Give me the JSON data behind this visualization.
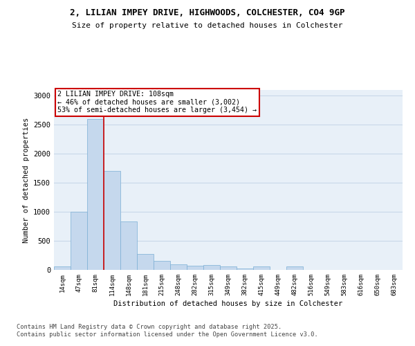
{
  "title_line1": "2, LILIAN IMPEY DRIVE, HIGHWOODS, COLCHESTER, CO4 9GP",
  "title_line2": "Size of property relative to detached houses in Colchester",
  "xlabel": "Distribution of detached houses by size in Colchester",
  "ylabel": "Number of detached properties",
  "bins": [
    "14sqm",
    "47sqm",
    "81sqm",
    "114sqm",
    "148sqm",
    "181sqm",
    "215sqm",
    "248sqm",
    "282sqm",
    "315sqm",
    "349sqm",
    "382sqm",
    "415sqm",
    "449sqm",
    "482sqm",
    "516sqm",
    "549sqm",
    "583sqm",
    "616sqm",
    "650sqm",
    "683sqm"
  ],
  "values": [
    60,
    1000,
    2600,
    1700,
    830,
    270,
    160,
    95,
    70,
    80,
    65,
    20,
    55,
    5,
    55,
    5,
    5,
    5,
    5,
    5,
    0
  ],
  "bar_color": "#c5d8ed",
  "bar_edge_color": "#7aaed4",
  "red_line_bin_index": 2.5,
  "annotation_text": "2 LILIAN IMPEY DRIVE: 108sqm\n← 46% of detached houses are smaller (3,002)\n53% of semi-detached houses are larger (3,454) →",
  "ylim": [
    0,
    3100
  ],
  "yticks": [
    0,
    500,
    1000,
    1500,
    2000,
    2500,
    3000
  ],
  "grid_color": "#c8d8e8",
  "background_color": "#e8f0f8",
  "footnote": "Contains HM Land Registry data © Crown copyright and database right 2025.\nContains public sector information licensed under the Open Government Licence v3.0."
}
